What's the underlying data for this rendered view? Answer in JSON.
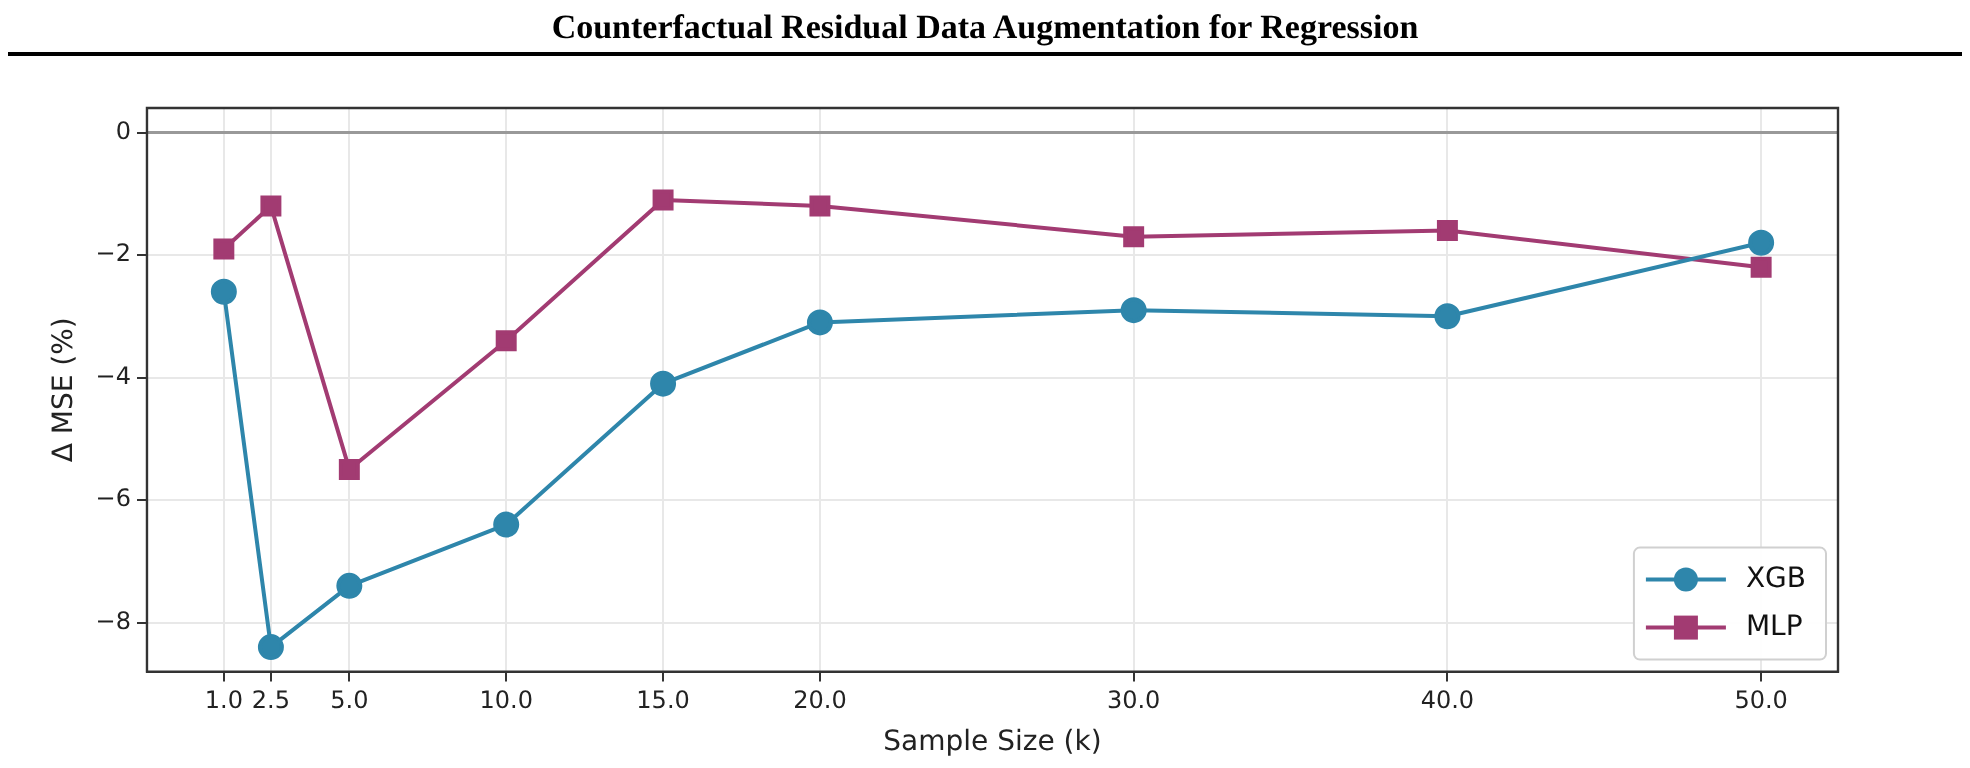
{
  "chart_data": {
    "type": "line",
    "title": "Counterfactual Residual Data Augmentation for Regression",
    "xlabel": "Sample Size (k)",
    "ylabel": "Δ MSE (%)",
    "x": [
      1,
      2.5,
      5,
      10,
      15,
      20,
      30,
      40,
      50
    ],
    "series": [
      {
        "name": "XGB",
        "color": "#2e86ab",
        "marker": "circle",
        "values": [
          -2.6,
          -8.4,
          -7.4,
          -6.4,
          -4.1,
          -3.1,
          -2.9,
          -3.0,
          -1.8
        ]
      },
      {
        "name": "MLP",
        "color": "#a23b72",
        "marker": "square",
        "values": [
          -1.9,
          -1.2,
          -5.5,
          -3.4,
          -1.1,
          -1.2,
          -1.7,
          -1.6,
          -2.2
        ]
      }
    ],
    "xlim": [
      -1.45,
      52.45
    ],
    "xticks": [
      {
        "value": 1,
        "label": "1.0"
      },
      {
        "value": 2.5,
        "label": "2.5"
      },
      {
        "value": 5,
        "label": "5.0"
      },
      {
        "value": 10,
        "label": "10.0"
      },
      {
        "value": 15,
        "label": "15.0"
      },
      {
        "value": 20,
        "label": "20.0"
      },
      {
        "value": 30,
        "label": "30.0"
      },
      {
        "value": 40,
        "label": "40.0"
      },
      {
        "value": 50,
        "label": "50.0"
      }
    ],
    "ylim": [
      -8.8,
      0.4
    ],
    "yticks": [
      {
        "value": -8,
        "label": "−8"
      },
      {
        "value": -6,
        "label": "−6"
      },
      {
        "value": -4,
        "label": "−4"
      },
      {
        "value": -2,
        "label": "−2"
      },
      0
    ],
    "ref_lines": [
      {
        "axis": "y",
        "value": 0,
        "color": "#999999"
      }
    ],
    "grid": true,
    "legend": "bottom right",
    "line_style": "solid"
  }
}
